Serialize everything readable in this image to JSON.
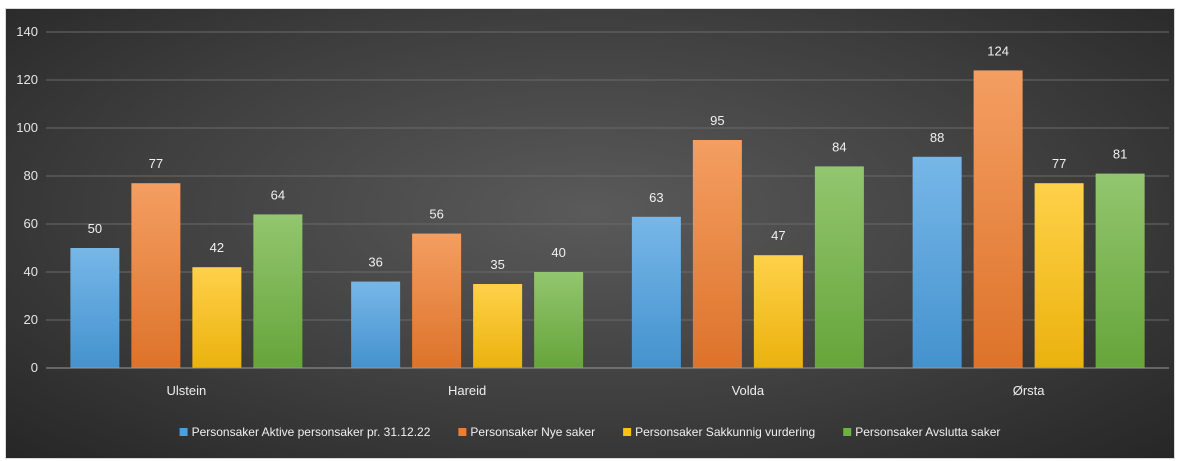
{
  "chart_data": {
    "type": "bar",
    "title": "",
    "xlabel": "",
    "ylabel": "",
    "categories": [
      "Ulstein",
      "Hareid",
      "Volda",
      "Ørsta"
    ],
    "ylim": [
      0,
      140
    ],
    "yticks": [
      0,
      20,
      40,
      60,
      80,
      100,
      120,
      140
    ],
    "grid": true,
    "legend_position": "bottom",
    "series": [
      {
        "name": "Personsaker Aktive personsaker pr. 31.12.22",
        "color": "#4a9fe0",
        "values": [
          50,
          36,
          63,
          88
        ]
      },
      {
        "name": "Personsaker Nye saker",
        "color": "#f07d2e",
        "values": [
          77,
          56,
          95,
          124
        ]
      },
      {
        "name": "Personsaker Sakkunnig vurdering",
        "color": "#ffc20e",
        "values": [
          42,
          35,
          47,
          77
        ]
      },
      {
        "name": "Personsaker Avslutta saker",
        "color": "#6fb33f",
        "values": [
          64,
          40,
          84,
          81
        ]
      }
    ]
  }
}
